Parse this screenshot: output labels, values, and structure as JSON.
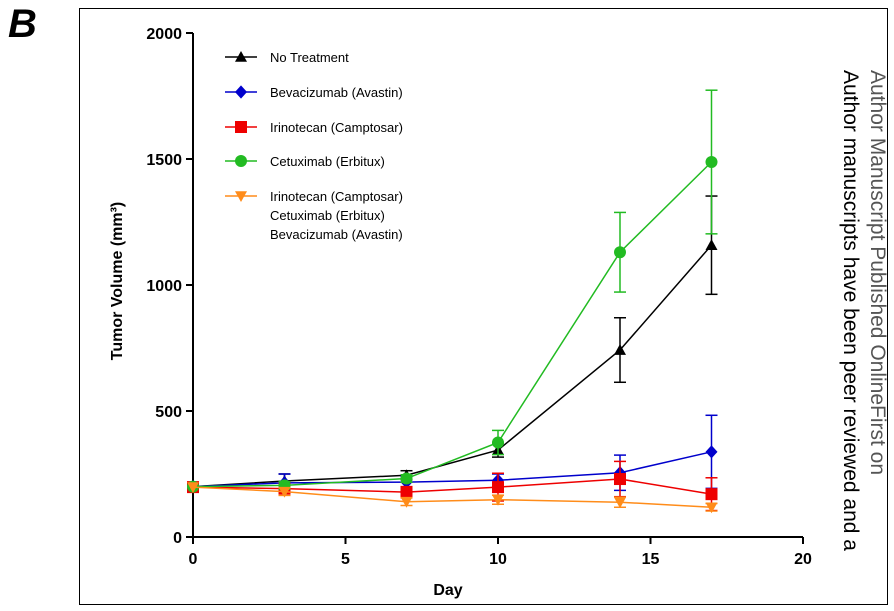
{
  "panel_label": "B",
  "watermark": {
    "line1": "Author Manuscript Published OnlineFirst on",
    "line2": "Author manuscripts have been peer reviewed and a"
  },
  "chart_data": {
    "type": "line",
    "title": "",
    "xlabel": "Day",
    "ylabel": "Tumor Volume (mm³)",
    "xlim": [
      0,
      20
    ],
    "ylim": [
      0,
      2000
    ],
    "xticks": [
      0,
      5,
      10,
      15,
      20
    ],
    "yticks": [
      0,
      500,
      1000,
      1500,
      2000
    ],
    "grid": false,
    "legend_position": "top-left",
    "series": [
      {
        "name": "No Treatment",
        "name_lines": [
          "No Treatment"
        ],
        "color": "#000000",
        "marker": "triangle-up",
        "x": [
          0,
          3,
          7,
          10,
          14,
          17
        ],
        "y": [
          200,
          222,
          245,
          345,
          742,
          1158
        ],
        "err": [
          0,
          28,
          18,
          28,
          128,
          195
        ]
      },
      {
        "name": "Bevacizumab (Avastin)",
        "name_lines": [
          "Bevacizumab (Avastin)"
        ],
        "color": "#0000cc",
        "marker": "diamond",
        "x": [
          0,
          3,
          7,
          10,
          14,
          17
        ],
        "y": [
          200,
          215,
          218,
          225,
          255,
          338
        ],
        "err": [
          0,
          35,
          22,
          25,
          70,
          145
        ]
      },
      {
        "name": "Irinotecan (Camptosar)",
        "name_lines": [
          "Irinotecan (Camptosar)"
        ],
        "color": "#ee0000",
        "marker": "square",
        "x": [
          0,
          3,
          7,
          10,
          14,
          17
        ],
        "y": [
          198,
          192,
          178,
          198,
          230,
          170
        ],
        "err": [
          0,
          18,
          22,
          55,
          70,
          65
        ]
      },
      {
        "name": "Cetuximab (Erbitux)",
        "name_lines": [
          "Cetuximab (Erbitux)"
        ],
        "color": "#22bb22",
        "marker": "circle",
        "x": [
          0,
          3,
          7,
          10,
          14,
          17
        ],
        "y": [
          200,
          205,
          232,
          375,
          1130,
          1488
        ],
        "err": [
          0,
          15,
          15,
          48,
          158,
          285
        ]
      },
      {
        "name": "Irinotecan (Camptosar) Cetuximab (Erbitux) Bevacizumab (Avastin)",
        "name_lines": [
          "Irinotecan (Camptosar)",
          "Cetuximab (Erbitux)",
          "Bevacizumab (Avastin)"
        ],
        "color": "#ff8c1a",
        "marker": "triangle-down",
        "x": [
          0,
          3,
          7,
          10,
          14,
          17
        ],
        "y": [
          198,
          180,
          140,
          148,
          138,
          118
        ],
        "err": [
          0,
          15,
          15,
          18,
          20,
          15
        ]
      }
    ]
  }
}
